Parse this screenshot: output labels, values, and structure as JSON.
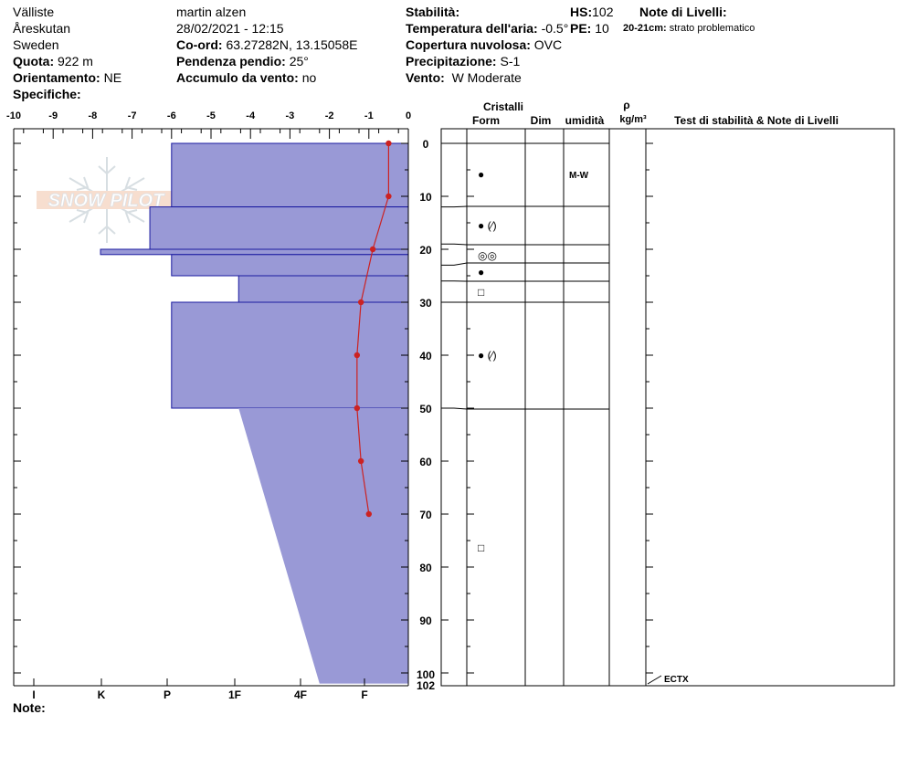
{
  "header": {
    "location": "Välliste",
    "area": "Åreskutan",
    "country": "Sweden",
    "quota_label": "Quota:",
    "quota_value": "922 m",
    "aspect_label": "Orientamento:",
    "aspect_value": "NE",
    "specifics_label": "Specifiche:",
    "observer": "martin alzen",
    "datetime": "28/02/2021 - 12:15",
    "coord_label": "Co-ord:",
    "coord_value": "63.27282N, 13.15058E",
    "slope_label": "Pendenza pendio:",
    "slope_value": "25°",
    "wind_load_label": "Accumulo da vento:",
    "wind_load_value": "no",
    "stability_label": "Stabilità:",
    "air_temp_label": "Temperatura dell'aria:",
    "air_temp_value": "-0.5°",
    "cloud_label": "Copertura nuvolosa:",
    "cloud_value": "OVC",
    "precip_label": "Precipitazione:",
    "precip_value": "S-1",
    "wind_label": "Vento:",
    "wind_value": "W Moderate",
    "hs_label": "HS:",
    "hs_value": "102",
    "pe_label": "PE:",
    "pe_value": "10",
    "notes_title": "Note di Livelli:",
    "layer_note_depth": "20-21cm:",
    "layer_note_text": "strato problematico"
  },
  "footer": {
    "note_label": "Note:"
  },
  "logo": {
    "text": "SNOW PILOT",
    "icon": "snowflake-icon"
  },
  "colors": {
    "hardness_fill": "#9999d6",
    "hardness_stroke": "#1a1aa0",
    "temp_line": "#cc2222"
  },
  "chart_data": {
    "type": "snow-profile",
    "temp_axis": {
      "ticks": [
        "-10",
        "-9",
        "-8",
        "-7",
        "-6",
        "-5",
        "-4",
        "-3",
        "-2",
        "-1",
        "0"
      ],
      "range": [
        -10,
        0
      ]
    },
    "depth_axis": {
      "ticks": [
        "0",
        "10",
        "20",
        "30",
        "40",
        "50",
        "60",
        "70",
        "80",
        "90",
        "100",
        "102"
      ],
      "range": [
        0,
        102
      ]
    },
    "hardness_axis": {
      "ticks": [
        "I",
        "K",
        "P",
        "1F",
        "4F",
        "F"
      ]
    },
    "temperature_profile": [
      {
        "depth": 0,
        "temp": -0.5
      },
      {
        "depth": 10,
        "temp": -0.5
      },
      {
        "depth": 20,
        "temp": -0.9
      },
      {
        "depth": 30,
        "temp": -1.2
      },
      {
        "depth": 40,
        "temp": -1.3
      },
      {
        "depth": 50,
        "temp": -1.3
      },
      {
        "depth": 60,
        "temp": -1.2
      },
      {
        "depth": 70,
        "temp": -1.0
      }
    ],
    "hardness_layers": [
      {
        "top": 0,
        "bottom": 12,
        "left_temp": -6,
        "right_temp": 0
      },
      {
        "top": 12,
        "bottom": 20,
        "left_temp": -6.55,
        "right_temp": 0
      },
      {
        "top": 20,
        "bottom": 21,
        "left_temp": -7.8,
        "right_temp": 0
      },
      {
        "top": 21,
        "bottom": 25,
        "left_temp": -6,
        "right_temp": 0
      },
      {
        "top": 25,
        "bottom": 30,
        "left_temp": -4.3,
        "right_temp": 0
      },
      {
        "top": 30,
        "bottom": 50,
        "left_temp": -6,
        "right_temp": 0
      }
    ],
    "hardness_wedge": [
      {
        "depth": 50,
        "temp": -4.3
      },
      {
        "depth": 102,
        "temp": -2.25
      }
    ],
    "columns": {
      "crystals": "Cristalli",
      "form": "Form",
      "dim": "Dim",
      "moisture": "umidità",
      "rho": "ρ",
      "rho_unit": "kg/m³",
      "stability": "Test di stabilità & Note di Livelli"
    },
    "layer_boundaries": [
      0,
      12,
      19,
      23,
      26,
      30,
      50
    ],
    "grain_marks": [
      {
        "depth": 6,
        "symbol": "●"
      },
      {
        "depth": 15.5,
        "symbol": "● (⁄)"
      },
      {
        "depth": 21,
        "symbol": "◎◎"
      },
      {
        "depth": 24.5,
        "symbol": "●"
      },
      {
        "depth": 28,
        "symbol": "□"
      },
      {
        "depth": 40,
        "symbol": "● (⁄)"
      },
      {
        "depth": 76,
        "symbol": "□"
      }
    ],
    "moisture_marks": [
      {
        "depth": 6,
        "text": "M-W"
      }
    ],
    "stability_tests": [
      {
        "depth": 102,
        "text": "ECTX"
      }
    ]
  }
}
